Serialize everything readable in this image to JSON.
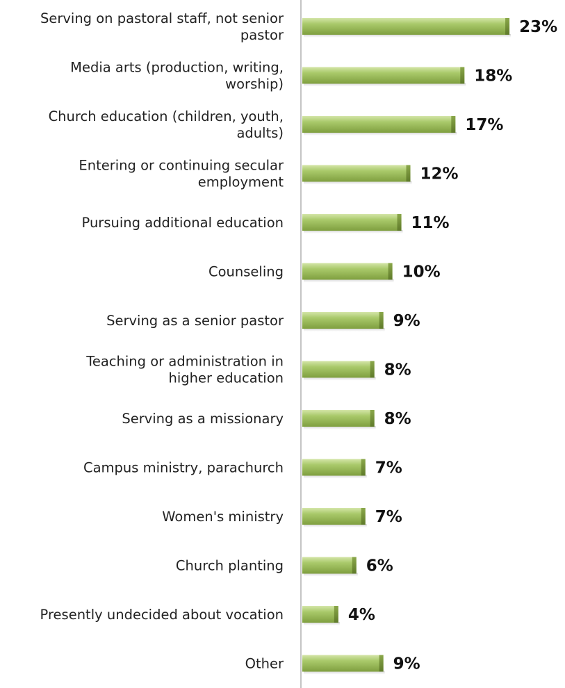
{
  "chart_data": {
    "type": "bar",
    "orientation": "horizontal",
    "title": "",
    "xlabel": "",
    "ylabel": "",
    "value_suffix": "%",
    "xlim": [
      0,
      23
    ],
    "grid": false,
    "legend": "none",
    "bar_color": "#9BBB59",
    "categories": [
      [
        "Serving on pastoral staff, not senior",
        "pastor"
      ],
      [
        "Media arts (production, writing,",
        "worship)"
      ],
      [
        "Church education (children, youth,",
        "adults)"
      ],
      [
        "Entering or continuing secular",
        "employment"
      ],
      [
        "Pursuing additional education"
      ],
      [
        "Counseling"
      ],
      [
        "Serving as a senior pastor"
      ],
      [
        "Teaching or administration in",
        "higher education"
      ],
      [
        "Serving as a missionary"
      ],
      [
        "Campus ministry, parachurch"
      ],
      [
        "Women's ministry"
      ],
      [
        "Church planting"
      ],
      [
        "Presently undecided about vocation"
      ],
      [
        "Other"
      ]
    ],
    "values": [
      23,
      18,
      17,
      12,
      11,
      10,
      9,
      8,
      8,
      7,
      7,
      6,
      4,
      9
    ],
    "value_labels": [
      "23%",
      "18%",
      "17%",
      "12%",
      "11%",
      "10%",
      "9%",
      "8%",
      "8%",
      "7%",
      "7%",
      "6%",
      "4%",
      "9%"
    ]
  }
}
